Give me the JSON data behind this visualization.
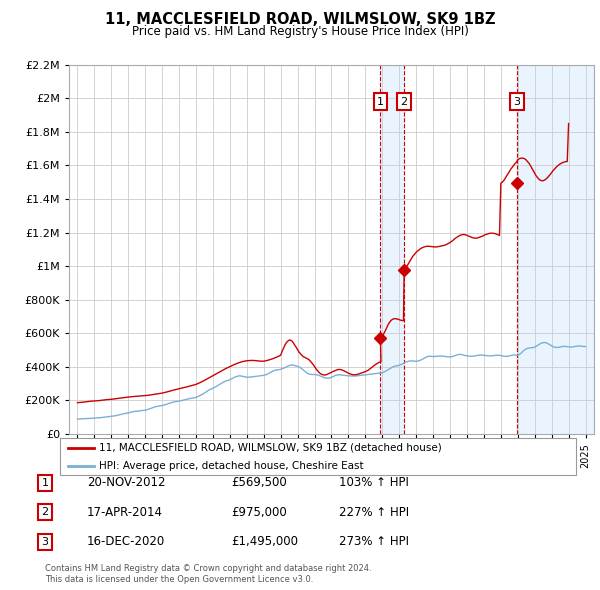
{
  "title": "11, MACCLESFIELD ROAD, WILMSLOW, SK9 1BZ",
  "subtitle": "Price paid vs. HM Land Registry's House Price Index (HPI)",
  "legend_line1": "11, MACCLESFIELD ROAD, WILMSLOW, SK9 1BZ (detached house)",
  "legend_line2": "HPI: Average price, detached house, Cheshire East",
  "footnote1": "Contains HM Land Registry data © Crown copyright and database right 2024.",
  "footnote2": "This data is licensed under the Open Government Licence v3.0.",
  "transactions": [
    {
      "num": 1,
      "date": "20-NOV-2012",
      "price": 569500,
      "pct": "103%",
      "dir": "↑",
      "year": 2012.89
    },
    {
      "num": 2,
      "date": "17-APR-2014",
      "price": 975000,
      "pct": "227%",
      "dir": "↑",
      "year": 2014.29
    },
    {
      "num": 3,
      "date": "16-DEC-2020",
      "price": 1495000,
      "pct": "273%",
      "dir": "↑",
      "year": 2020.96
    }
  ],
  "price_color": "#cc0000",
  "hpi_color": "#7bafd4",
  "vline_color": "#cc0000",
  "vline_fill": "#ddeeff",
  "ylim": [
    0,
    2200000
  ],
  "yticks": [
    0,
    200000,
    400000,
    600000,
    800000,
    1000000,
    1200000,
    1400000,
    1600000,
    1800000,
    2000000,
    2200000
  ],
  "xlim_start": 1994.5,
  "xlim_end": 2025.5,
  "hpi_x": [
    1995.0,
    1995.08,
    1995.17,
    1995.25,
    1995.33,
    1995.42,
    1995.5,
    1995.58,
    1995.67,
    1995.75,
    1995.83,
    1995.92,
    1996.0,
    1996.08,
    1996.17,
    1996.25,
    1996.33,
    1996.42,
    1996.5,
    1996.58,
    1996.67,
    1996.75,
    1996.83,
    1996.92,
    1997.0,
    1997.08,
    1997.17,
    1997.25,
    1997.33,
    1997.42,
    1997.5,
    1997.58,
    1997.67,
    1997.75,
    1997.83,
    1997.92,
    1998.0,
    1998.08,
    1998.17,
    1998.25,
    1998.33,
    1998.42,
    1998.5,
    1998.58,
    1998.67,
    1998.75,
    1998.83,
    1998.92,
    1999.0,
    1999.08,
    1999.17,
    1999.25,
    1999.33,
    1999.42,
    1999.5,
    1999.58,
    1999.67,
    1999.75,
    1999.83,
    1999.92,
    2000.0,
    2000.08,
    2000.17,
    2000.25,
    2000.33,
    2000.42,
    2000.5,
    2000.58,
    2000.67,
    2000.75,
    2000.83,
    2000.92,
    2001.0,
    2001.08,
    2001.17,
    2001.25,
    2001.33,
    2001.42,
    2001.5,
    2001.58,
    2001.67,
    2001.75,
    2001.83,
    2001.92,
    2002.0,
    2002.08,
    2002.17,
    2002.25,
    2002.33,
    2002.42,
    2002.5,
    2002.58,
    2002.67,
    2002.75,
    2002.83,
    2002.92,
    2003.0,
    2003.08,
    2003.17,
    2003.25,
    2003.33,
    2003.42,
    2003.5,
    2003.58,
    2003.67,
    2003.75,
    2003.83,
    2003.92,
    2004.0,
    2004.08,
    2004.17,
    2004.25,
    2004.33,
    2004.42,
    2004.5,
    2004.58,
    2004.67,
    2004.75,
    2004.83,
    2004.92,
    2005.0,
    2005.08,
    2005.17,
    2005.25,
    2005.33,
    2005.42,
    2005.5,
    2005.58,
    2005.67,
    2005.75,
    2005.83,
    2005.92,
    2006.0,
    2006.08,
    2006.17,
    2006.25,
    2006.33,
    2006.42,
    2006.5,
    2006.58,
    2006.67,
    2006.75,
    2006.83,
    2006.92,
    2007.0,
    2007.08,
    2007.17,
    2007.25,
    2007.33,
    2007.42,
    2007.5,
    2007.58,
    2007.67,
    2007.75,
    2007.83,
    2007.92,
    2008.0,
    2008.08,
    2008.17,
    2008.25,
    2008.33,
    2008.42,
    2008.5,
    2008.58,
    2008.67,
    2008.75,
    2008.83,
    2008.92,
    2009.0,
    2009.08,
    2009.17,
    2009.25,
    2009.33,
    2009.42,
    2009.5,
    2009.58,
    2009.67,
    2009.75,
    2009.83,
    2009.92,
    2010.0,
    2010.08,
    2010.17,
    2010.25,
    2010.33,
    2010.42,
    2010.5,
    2010.58,
    2010.67,
    2010.75,
    2010.83,
    2010.92,
    2011.0,
    2011.08,
    2011.17,
    2011.25,
    2011.33,
    2011.42,
    2011.5,
    2011.58,
    2011.67,
    2011.75,
    2011.83,
    2011.92,
    2012.0,
    2012.08,
    2012.17,
    2012.25,
    2012.33,
    2012.42,
    2012.5,
    2012.58,
    2012.67,
    2012.75,
    2012.83,
    2012.92,
    2013.0,
    2013.08,
    2013.17,
    2013.25,
    2013.33,
    2013.42,
    2013.5,
    2013.58,
    2013.67,
    2013.75,
    2013.83,
    2013.92,
    2014.0,
    2014.08,
    2014.17,
    2014.25,
    2014.33,
    2014.42,
    2014.5,
    2014.58,
    2014.67,
    2014.75,
    2014.83,
    2014.92,
    2015.0,
    2015.08,
    2015.17,
    2015.25,
    2015.33,
    2015.42,
    2015.5,
    2015.58,
    2015.67,
    2015.75,
    2015.83,
    2015.92,
    2016.0,
    2016.08,
    2016.17,
    2016.25,
    2016.33,
    2016.42,
    2016.5,
    2016.58,
    2016.67,
    2016.75,
    2016.83,
    2016.92,
    2017.0,
    2017.08,
    2017.17,
    2017.25,
    2017.33,
    2017.42,
    2017.5,
    2017.58,
    2017.67,
    2017.75,
    2017.83,
    2017.92,
    2018.0,
    2018.08,
    2018.17,
    2018.25,
    2018.33,
    2018.42,
    2018.5,
    2018.58,
    2018.67,
    2018.75,
    2018.83,
    2018.92,
    2019.0,
    2019.08,
    2019.17,
    2019.25,
    2019.33,
    2019.42,
    2019.5,
    2019.58,
    2019.67,
    2019.75,
    2019.83,
    2019.92,
    2020.0,
    2020.08,
    2020.17,
    2020.25,
    2020.33,
    2020.42,
    2020.5,
    2020.58,
    2020.67,
    2020.75,
    2020.83,
    2020.92,
    2021.0,
    2021.08,
    2021.17,
    2021.25,
    2021.33,
    2021.42,
    2021.5,
    2021.58,
    2021.67,
    2021.75,
    2021.83,
    2021.92,
    2022.0,
    2022.08,
    2022.17,
    2022.25,
    2022.33,
    2022.42,
    2022.5,
    2022.58,
    2022.67,
    2022.75,
    2022.83,
    2022.92,
    2023.0,
    2023.08,
    2023.17,
    2023.25,
    2023.33,
    2023.42,
    2023.5,
    2023.58,
    2023.67,
    2023.75,
    2023.83,
    2023.92,
    2024.0,
    2024.08,
    2024.17,
    2024.25,
    2024.33,
    2024.42,
    2024.5,
    2024.58,
    2024.67,
    2024.75,
    2024.83,
    2024.92,
    2025.0
  ],
  "hpi_y": [
    87000,
    87500,
    88000,
    88500,
    89000,
    89500,
    90000,
    90200,
    90500,
    91000,
    91500,
    92000,
    93000,
    93500,
    94000,
    94500,
    95000,
    96000,
    97000,
    98000,
    99000,
    100000,
    101000,
    102000,
    103000,
    104000,
    105000,
    107000,
    109000,
    111000,
    113000,
    115000,
    117000,
    119000,
    121000,
    122000,
    124000,
    126000,
    128000,
    130000,
    132000,
    133000,
    134000,
    135000,
    136000,
    137000,
    138000,
    138500,
    140000,
    142000,
    145000,
    148000,
    151000,
    154000,
    157000,
    160000,
    162000,
    164000,
    166000,
    167000,
    168000,
    170000,
    172000,
    175000,
    178000,
    181000,
    184000,
    186000,
    188000,
    190000,
    192000,
    193000,
    194000,
    196000,
    198000,
    200000,
    202000,
    204000,
    206000,
    208000,
    210000,
    212000,
    213000,
    214000,
    216000,
    220000,
    224000,
    228000,
    232000,
    237000,
    242000,
    248000,
    254000,
    260000,
    264000,
    267000,
    271000,
    275000,
    280000,
    285000,
    290000,
    295000,
    300000,
    305000,
    310000,
    314000,
    316000,
    318000,
    322000,
    326000,
    330000,
    335000,
    339000,
    342000,
    344000,
    345000,
    344000,
    342000,
    340000,
    338000,
    337000,
    337000,
    337000,
    338000,
    339000,
    340000,
    341000,
    342000,
    343000,
    344000,
    345000,
    346000,
    348000,
    350000,
    353000,
    357000,
    361000,
    366000,
    371000,
    375000,
    378000,
    380000,
    381000,
    382000,
    384000,
    387000,
    390000,
    394000,
    398000,
    403000,
    407000,
    410000,
    410000,
    408000,
    406000,
    404000,
    402000,
    398000,
    393000,
    387000,
    380000,
    373000,
    366000,
    360000,
    356000,
    354000,
    353000,
    353000,
    353000,
    352000,
    350000,
    348000,
    344000,
    340000,
    337000,
    334000,
    332000,
    331000,
    331000,
    333000,
    336000,
    340000,
    344000,
    348000,
    350000,
    351000,
    351000,
    350000,
    349000,
    348000,
    347000,
    346000,
    345000,
    345000,
    344000,
    344000,
    344000,
    344000,
    345000,
    346000,
    347000,
    348000,
    349000,
    350000,
    351000,
    352000,
    353000,
    354000,
    355000,
    356000,
    357000,
    358000,
    359000,
    360000,
    361000,
    362000,
    364000,
    367000,
    371000,
    376000,
    381000,
    386000,
    391000,
    396000,
    400000,
    403000,
    405000,
    406000,
    408000,
    411000,
    415000,
    420000,
    425000,
    428000,
    431000,
    433000,
    434000,
    434000,
    433000,
    432000,
    432000,
    433000,
    435000,
    438000,
    442000,
    447000,
    452000,
    456000,
    460000,
    462000,
    462000,
    461000,
    460000,
    460000,
    461000,
    462000,
    463000,
    463000,
    463000,
    462000,
    461000,
    460000,
    459000,
    458000,
    458000,
    459000,
    461000,
    464000,
    467000,
    470000,
    472000,
    473000,
    472000,
    470000,
    468000,
    466000,
    464000,
    463000,
    462000,
    462000,
    462000,
    463000,
    464000,
    466000,
    468000,
    469000,
    469000,
    468000,
    467000,
    466000,
    465000,
    464000,
    464000,
    464000,
    465000,
    466000,
    467000,
    468000,
    468000,
    467000,
    466000,
    464000,
    462000,
    461000,
    461000,
    462000,
    464000,
    466000,
    468000,
    469000,
    469000,
    467000,
    468000,
    472000,
    478000,
    486000,
    494000,
    501000,
    506000,
    509000,
    511000,
    512000,
    513000,
    514000,
    517000,
    521000,
    526000,
    532000,
    537000,
    541000,
    543000,
    544000,
    542000,
    539000,
    534000,
    528000,
    523000,
    519000,
    516000,
    514000,
    514000,
    515000,
    517000,
    519000,
    520000,
    521000,
    520000,
    519000,
    518000,
    517000,
    517000,
    518000,
    519000,
    521000,
    522000,
    523000,
    523000,
    522000,
    521000,
    519000,
    520000
  ],
  "prop_x": [
    1995.0,
    1995.25,
    1995.5,
    1995.75,
    1996.0,
    1996.25,
    1996.5,
    1996.75,
    1997.0,
    1997.25,
    1997.5,
    1997.75,
    1998.0,
    1998.25,
    1998.5,
    1998.75,
    1999.0,
    1999.25,
    1999.5,
    1999.75,
    2000.0,
    2000.25,
    2000.5,
    2000.75,
    2001.0,
    2001.25,
    2001.5,
    2001.75,
    2002.0,
    2002.25,
    2002.5,
    2002.75,
    2003.0,
    2003.25,
    2003.5,
    2003.75,
    2004.0,
    2004.25,
    2004.5,
    2004.75,
    2005.0,
    2005.25,
    2005.5,
    2005.75,
    2006.0,
    2006.25,
    2006.5,
    2006.75,
    2007.0,
    2007.08,
    2007.17,
    2007.25,
    2007.33,
    2007.42,
    2007.5,
    2007.58,
    2007.67,
    2007.75,
    2007.83,
    2007.92,
    2008.0,
    2008.08,
    2008.17,
    2008.25,
    2008.33,
    2008.42,
    2008.5,
    2008.58,
    2008.67,
    2008.75,
    2008.83,
    2008.92,
    2009.0,
    2009.08,
    2009.17,
    2009.25,
    2009.33,
    2009.42,
    2009.5,
    2009.58,
    2009.67,
    2009.75,
    2009.83,
    2009.92,
    2010.0,
    2010.08,
    2010.17,
    2010.25,
    2010.33,
    2010.42,
    2010.5,
    2010.58,
    2010.67,
    2010.75,
    2010.83,
    2010.92,
    2011.0,
    2011.08,
    2011.17,
    2011.25,
    2011.33,
    2011.42,
    2011.5,
    2011.58,
    2011.67,
    2011.75,
    2011.83,
    2011.92,
    2012.0,
    2012.08,
    2012.17,
    2012.25,
    2012.33,
    2012.42,
    2012.5,
    2012.58,
    2012.67,
    2012.75,
    2012.83,
    2012.92,
    2012.89,
    2013.0,
    2013.08,
    2013.17,
    2013.25,
    2013.33,
    2013.42,
    2013.5,
    2013.58,
    2013.67,
    2013.75,
    2013.83,
    2013.92,
    2014.0,
    2014.08,
    2014.17,
    2014.25,
    2014.29,
    2014.33,
    2014.42,
    2014.5,
    2014.58,
    2014.67,
    2014.75,
    2014.83,
    2014.92,
    2015.0,
    2015.08,
    2015.17,
    2015.25,
    2015.33,
    2015.42,
    2015.5,
    2015.58,
    2015.67,
    2015.75,
    2015.83,
    2015.92,
    2016.0,
    2016.08,
    2016.17,
    2016.25,
    2016.33,
    2016.42,
    2016.5,
    2016.58,
    2016.67,
    2016.75,
    2016.83,
    2016.92,
    2017.0,
    2017.08,
    2017.17,
    2017.25,
    2017.33,
    2017.42,
    2017.5,
    2017.58,
    2017.67,
    2017.75,
    2017.83,
    2017.92,
    2018.0,
    2018.08,
    2018.17,
    2018.25,
    2018.33,
    2018.42,
    2018.5,
    2018.58,
    2018.67,
    2018.75,
    2018.83,
    2018.92,
    2019.0,
    2019.08,
    2019.17,
    2019.25,
    2019.33,
    2019.42,
    2019.5,
    2019.58,
    2019.67,
    2019.75,
    2019.83,
    2019.92,
    2020.0,
    2020.08,
    2020.17,
    2020.25,
    2020.33,
    2020.42,
    2020.5,
    2020.58,
    2020.67,
    2020.75,
    2020.83,
    2020.92,
    2020.96,
    2021.0,
    2021.08,
    2021.17,
    2021.25,
    2021.33,
    2021.42,
    2021.5,
    2021.58,
    2021.67,
    2021.75,
    2021.83,
    2021.92,
    2022.0,
    2022.08,
    2022.17,
    2022.25,
    2022.33,
    2022.42,
    2022.5,
    2022.58,
    2022.67,
    2022.75,
    2022.83,
    2022.92,
    2023.0,
    2023.08,
    2023.17,
    2023.25,
    2023.33,
    2023.42,
    2023.5,
    2023.58,
    2023.67,
    2023.75,
    2023.83,
    2023.92,
    2024.0,
    2024.08,
    2024.17,
    2024.25,
    2024.33,
    2024.42,
    2024.5,
    2024.58,
    2024.67,
    2024.75,
    2024.83,
    2024.92,
    2025.0
  ],
  "prop_y": [
    185000,
    187000,
    190000,
    193000,
    195000,
    197000,
    200000,
    203000,
    205000,
    208000,
    212000,
    215000,
    218000,
    221000,
    223000,
    225000,
    227000,
    230000,
    234000,
    238000,
    242000,
    248000,
    255000,
    262000,
    268000,
    274000,
    280000,
    287000,
    294000,
    305000,
    318000,
    332000,
    346000,
    360000,
    374000,
    388000,
    400000,
    412000,
    422000,
    430000,
    435000,
    437000,
    436000,
    433000,
    432000,
    438000,
    446000,
    456000,
    468000,
    490000,
    510000,
    528000,
    542000,
    552000,
    558000,
    558000,
    552000,
    541000,
    528000,
    515000,
    500000,
    487000,
    476000,
    467000,
    460000,
    455000,
    451000,
    447000,
    441000,
    433000,
    423000,
    412000,
    400000,
    388000,
    376000,
    367000,
    359000,
    354000,
    351000,
    350000,
    351000,
    354000,
    358000,
    362000,
    366000,
    370000,
    374000,
    378000,
    381000,
    383000,
    383000,
    381000,
    378000,
    374000,
    370000,
    365000,
    361000,
    357000,
    354000,
    352000,
    351000,
    352000,
    353000,
    355000,
    358000,
    361000,
    364000,
    367000,
    370000,
    374000,
    379000,
    385000,
    391000,
    398000,
    405000,
    411000,
    417000,
    422000,
    426000,
    429000,
    569500,
    580000,
    595000,
    612000,
    630000,
    648000,
    663000,
    674000,
    681000,
    685000,
    686000,
    685000,
    683000,
    680000,
    677000,
    675000,
    674000,
    975000,
    980000,
    993000,
    1007000,
    1022000,
    1037000,
    1050000,
    1062000,
    1072000,
    1082000,
    1090000,
    1097000,
    1103000,
    1108000,
    1112000,
    1115000,
    1117000,
    1118000,
    1118000,
    1117000,
    1116000,
    1115000,
    1114000,
    1114000,
    1115000,
    1116000,
    1118000,
    1120000,
    1122000,
    1124000,
    1127000,
    1131000,
    1135000,
    1140000,
    1146000,
    1153000,
    1160000,
    1167000,
    1173000,
    1179000,
    1183000,
    1186000,
    1188000,
    1188000,
    1186000,
    1183000,
    1180000,
    1176000,
    1172000,
    1169000,
    1167000,
    1166000,
    1167000,
    1169000,
    1172000,
    1175000,
    1179000,
    1183000,
    1187000,
    1190000,
    1193000,
    1195000,
    1196000,
    1196000,
    1195000,
    1193000,
    1190000,
    1187000,
    1183000,
    1495000,
    1500000,
    1510000,
    1522000,
    1536000,
    1550000,
    1564000,
    1577000,
    1589000,
    1600000,
    1610000,
    1619000,
    1627000,
    1634000,
    1640000,
    1643000,
    1644000,
    1643000,
    1639000,
    1632000,
    1623000,
    1612000,
    1599000,
    1584000,
    1568000,
    1553000,
    1539000,
    1527000,
    1518000,
    1512000,
    1509000,
    1509000,
    1513000,
    1519000,
    1527000,
    1536000,
    1547000,
    1558000,
    1569000,
    1579000,
    1588000,
    1596000,
    1603000,
    1609000,
    1614000,
    1618000,
    1621000,
    1623000,
    1624000,
    1850000
  ]
}
